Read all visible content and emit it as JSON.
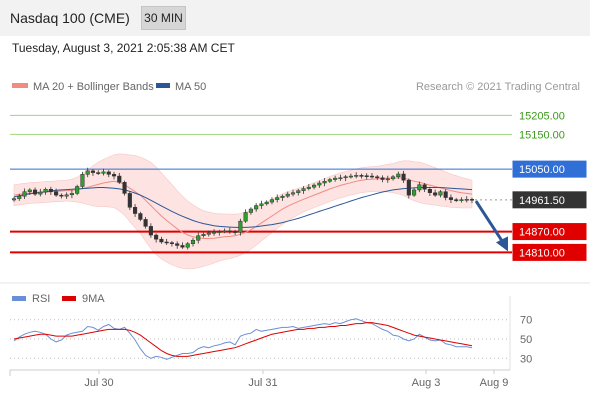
{
  "header": {
    "title": "Nasdaq 100 (CME)",
    "timeframe": "30 MIN"
  },
  "datetime": "Tuesday, August 3, 2021 2:05:38 AM CET",
  "legend": [
    {
      "label": "MA 20 + Bollinger Bands",
      "color": "#f28b82"
    },
    {
      "label": "MA 50",
      "color": "#2b5797"
    }
  ],
  "credit": "Research © 2021 Trading Central",
  "rsi_legend": [
    {
      "label": "RSI",
      "color": "#6b8fd6"
    },
    {
      "label": "9MA",
      "color": "#dd0000"
    }
  ],
  "chart_data": {
    "type": "line",
    "title": "Nasdaq 100 (CME)",
    "interval": "30 MIN",
    "x_ticks": [
      "Jul 30",
      "Jul 31",
      "Aug 3",
      "Aug 9"
    ],
    "ylim": [
      14765,
      15255
    ],
    "levels": [
      {
        "label": "15205.00",
        "value": 15205,
        "kind": "resistance"
      },
      {
        "label": "15150.00",
        "value": 15150,
        "kind": "resistance"
      },
      {
        "label": "15050.00",
        "value": 15050,
        "kind": "pivot"
      },
      {
        "label": "14961.50",
        "value": 14961.5,
        "kind": "last"
      },
      {
        "label": "14870.00",
        "value": 14870,
        "kind": "support"
      },
      {
        "label": "14810.00",
        "value": 14810,
        "kind": "support"
      }
    ],
    "price_close": [
      14965,
      14972,
      14985,
      14990,
      14978,
      14984,
      14992,
      14985,
      14975,
      14972,
      14976,
      14980,
      15000,
      15035,
      15045,
      15040,
      15038,
      15042,
      15035,
      15030,
      15012,
      14980,
      14940,
      14922,
      14905,
      14885,
      14860,
      14848,
      14840,
      14838,
      14835,
      14830,
      14825,
      14835,
      14845,
      14858,
      14862,
      14866,
      14868,
      14870,
      14872,
      14870,
      14868,
      14900,
      14925,
      14935,
      14945,
      14950,
      14955,
      14962,
      14968,
      14972,
      14978,
      14982,
      14988,
      14994,
      14998,
      15004,
      15010,
      15015,
      15020,
      15024,
      15025,
      15028,
      15030,
      15032,
      15031,
      15030,
      15028,
      15025,
      15020,
      15022,
      15028,
      15036,
      15018,
      14975,
      14990,
      15005,
      14992,
      14982,
      14975,
      14985,
      14968,
      14962,
      14960,
      14962,
      14963,
      14961.5
    ],
    "ma20": [
      14975,
      14977,
      14979,
      14981,
      14982,
      14983,
      14984,
      14985,
      14986,
      14987,
      14988,
      14989,
      14991,
      14994,
      14998,
      15002,
      15006,
      15010,
      15013,
      15015,
      15012,
      15005,
      14995,
      14985,
      14975,
      14960,
      14945,
      14930,
      14915,
      14902,
      14890,
      14878,
      14868,
      14860,
      14855,
      14852,
      14850,
      14850,
      14851,
      14853,
      14855,
      14856,
      14858,
      14862,
      14868,
      14875,
      14885,
      14895,
      14905,
      14915,
      14925,
      14935,
      14943,
      14950,
      14957,
      14963,
      14969,
      14975,
      14981,
      14987,
      14993,
      14998,
      15003,
      15007,
      15011,
      15015,
      15018,
      15020,
      15021,
      15022,
      15023,
      15024,
      15024,
      15025,
      15024,
      15020,
      15015,
      15012,
      15008,
      15004,
      15000,
      14996,
      14992,
      14988,
      14985,
      14982,
      14980,
      14978
    ],
    "ma50": [
      14970,
      14973,
      14976,
      14979,
      14981,
      14983,
      14985,
      14987,
      14989,
      14990,
      14991,
      14992,
      14993,
      14994,
      14995,
      14996,
      14997,
      14997,
      14996,
      14995,
      14993,
      14990,
      14986,
      14981,
      14975,
      14968,
      14960,
      14952,
      14944,
      14936,
      14928,
      14921,
      14914,
      14908,
      14902,
      14897,
      14893,
      14890,
      14887,
      14885,
      14884,
      14883,
      14882,
      14882,
      14882,
      14883,
      14884,
      14886,
      14888,
      14890,
      14893,
      14896,
      14900,
      14904,
      14908,
      14913,
      14918,
      14923,
      14928,
      14933,
      14938,
      14943,
      14948,
      14953,
      14958,
      14963,
      14968,
      14972,
      14976,
      14980,
      14984,
      14987,
      14990,
      14992,
      14994,
      14995,
      14996,
      14997,
      14997,
      14997,
      14997,
      14997,
      14996,
      14995,
      14994,
      14993,
      14992,
      14991
    ],
    "bb_width": [
      30,
      30,
      30,
      30,
      30,
      30,
      30,
      30,
      30,
      30,
      30,
      32,
      36,
      42,
      50,
      58,
      64,
      68,
      72,
      76,
      82,
      88,
      96,
      104,
      110,
      118,
      124,
      126,
      124,
      120,
      116,
      110,
      104,
      98,
      92,
      86,
      80,
      76,
      72,
      68,
      66,
      64,
      62,
      60,
      58,
      56,
      54,
      52,
      50,
      48,
      46,
      44,
      42,
      40,
      38,
      36,
      36,
      36,
      36,
      36,
      36,
      36,
      36,
      36,
      36,
      36,
      36,
      36,
      36,
      36,
      38,
      40,
      42,
      46,
      50,
      54,
      56,
      58,
      58,
      56,
      54,
      52,
      50,
      48,
      46,
      44,
      42,
      40
    ],
    "rsi": [
      48,
      52,
      55,
      57,
      58,
      57,
      55,
      50,
      47,
      49,
      54,
      56,
      57,
      58,
      63,
      62,
      59,
      63,
      65,
      61,
      60,
      62,
      56,
      49,
      40,
      33,
      30,
      32,
      31,
      29,
      31,
      33,
      35,
      35,
      36,
      40,
      42,
      41,
      43,
      44,
      46,
      47,
      44,
      53,
      55,
      56,
      60,
      58,
      59,
      60,
      61,
      62,
      62,
      63,
      61,
      62,
      63,
      64,
      65,
      66,
      65,
      67,
      66,
      68,
      70,
      71,
      69,
      67,
      66,
      63,
      60,
      58,
      54,
      53,
      50,
      48,
      50,
      55,
      52,
      49,
      48,
      49,
      45,
      44,
      42,
      42,
      42,
      41
    ],
    "rsi_ma": [
      50,
      51,
      52,
      53,
      54,
      55,
      55,
      54,
      53,
      53,
      53,
      53,
      54,
      55,
      56,
      57,
      58,
      59,
      60,
      60,
      60,
      60,
      59,
      57,
      54,
      50,
      46,
      42,
      38,
      35,
      33,
      32,
      32,
      32,
      33,
      34,
      35,
      36,
      37,
      38,
      39,
      40,
      41,
      43,
      45,
      47,
      49,
      51,
      53,
      55,
      56,
      57,
      58,
      59,
      60,
      60,
      61,
      61,
      62,
      62,
      63,
      63,
      64,
      64,
      65,
      66,
      66,
      67,
      67,
      66,
      65,
      64,
      62,
      60,
      58,
      56,
      54,
      53,
      52,
      51,
      50,
      49,
      48,
      47,
      46,
      45,
      44,
      43
    ],
    "rsi_levels": [
      70,
      50,
      30
    ],
    "rsi_ylim": [
      22,
      78
    ],
    "forecast_arrow": {
      "from_value": 14958,
      "to_value": 14810
    }
  }
}
